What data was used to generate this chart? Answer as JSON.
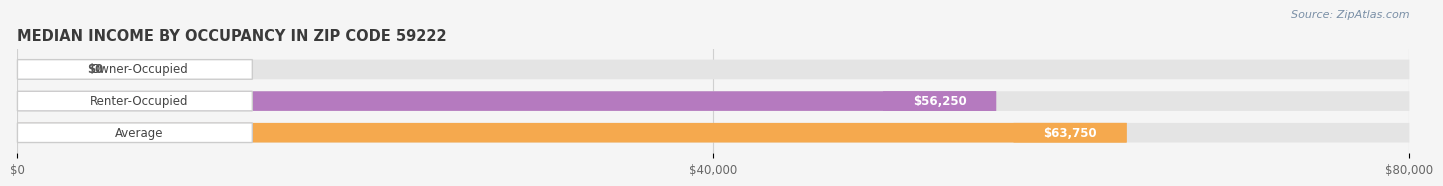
{
  "title": "MEDIAN INCOME BY OCCUPANCY IN ZIP CODE 59222",
  "source": "Source: ZipAtlas.com",
  "categories": [
    "Owner-Occupied",
    "Renter-Occupied",
    "Average"
  ],
  "values": [
    0,
    56250,
    63750
  ],
  "bar_colors": [
    "#5ecad4",
    "#b57abf",
    "#f5a94e"
  ],
  "xlim": [
    0,
    80000
  ],
  "xtick_labels": [
    "$0",
    "$40,000",
    "$80,000"
  ],
  "xtick_values": [
    0,
    40000,
    80000
  ],
  "bar_value_labels": [
    "$0",
    "$56,250",
    "$63,750"
  ],
  "background_color": "#f5f5f5",
  "bar_bg_color": "#e4e4e4",
  "title_fontsize": 10.5,
  "label_fontsize": 8.5,
  "tick_fontsize": 8.5,
  "source_fontsize": 8,
  "bar_height": 0.62,
  "label_color": "#444444",
  "grid_color": "#d0d0d0"
}
